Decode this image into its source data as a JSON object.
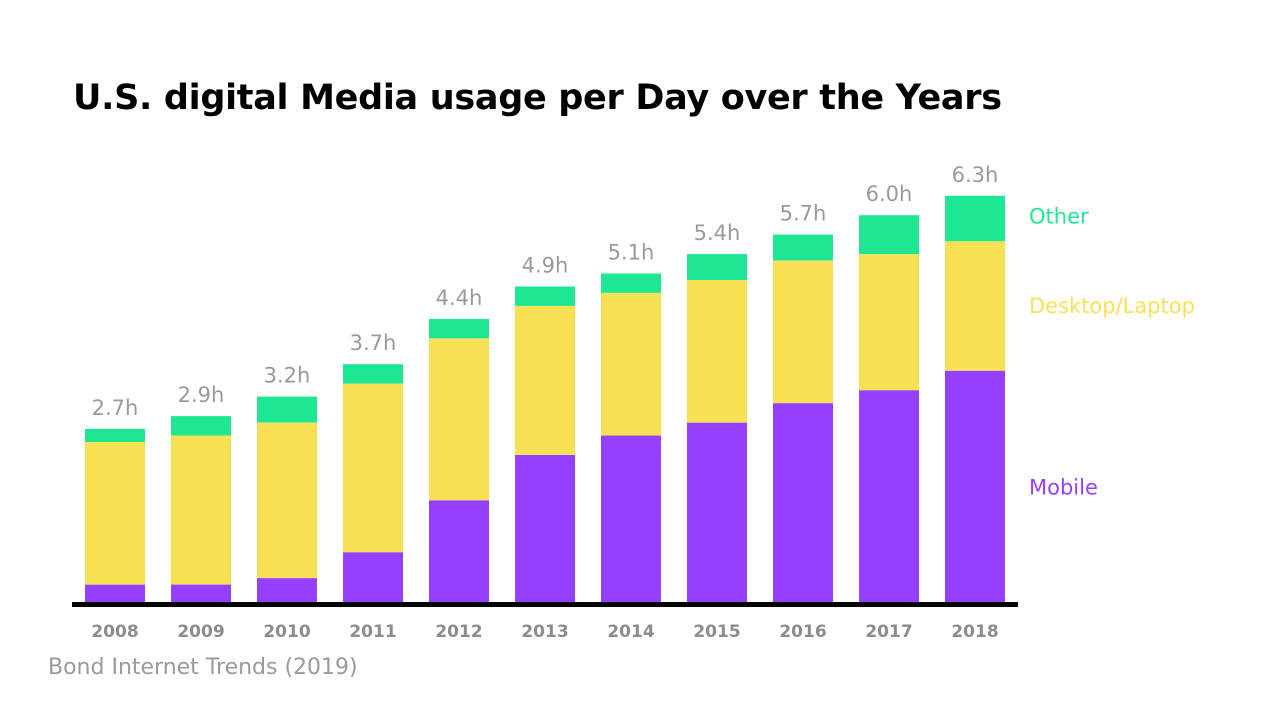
{
  "chart_data": {
    "type": "bar",
    "stacked": true,
    "title": "U.S. digital Media usage per Day over the Years",
    "source": "Bond Internet Trends (2019)",
    "xlabel": "",
    "ylabel": "",
    "unit": "h",
    "ylim": [
      0,
      6.5
    ],
    "grid": false,
    "legend_position": "right",
    "categories": [
      "2008",
      "2009",
      "2010",
      "2011",
      "2012",
      "2013",
      "2014",
      "2015",
      "2016",
      "2017",
      "2018"
    ],
    "totals": [
      "2.7h",
      "2.9h",
      "3.2h",
      "3.7h",
      "4.4h",
      "4.9h",
      "5.1h",
      "5.4h",
      "5.7h",
      "6.0h",
      "6.3h"
    ],
    "series": [
      {
        "name": "Mobile",
        "color": "#9540ff",
        "values": [
          0.3,
          0.3,
          0.4,
          0.8,
          1.6,
          2.3,
          2.6,
          2.8,
          3.1,
          3.3,
          3.6
        ]
      },
      {
        "name": "Desktop/Laptop",
        "color": "#f9e155",
        "values": [
          2.2,
          2.3,
          2.4,
          2.6,
          2.5,
          2.3,
          2.2,
          2.2,
          2.2,
          2.1,
          2.0
        ]
      },
      {
        "name": "Other",
        "color": "#1fe693",
        "values": [
          0.2,
          0.3,
          0.4,
          0.3,
          0.3,
          0.3,
          0.3,
          0.4,
          0.4,
          0.6,
          0.7
        ]
      }
    ]
  }
}
